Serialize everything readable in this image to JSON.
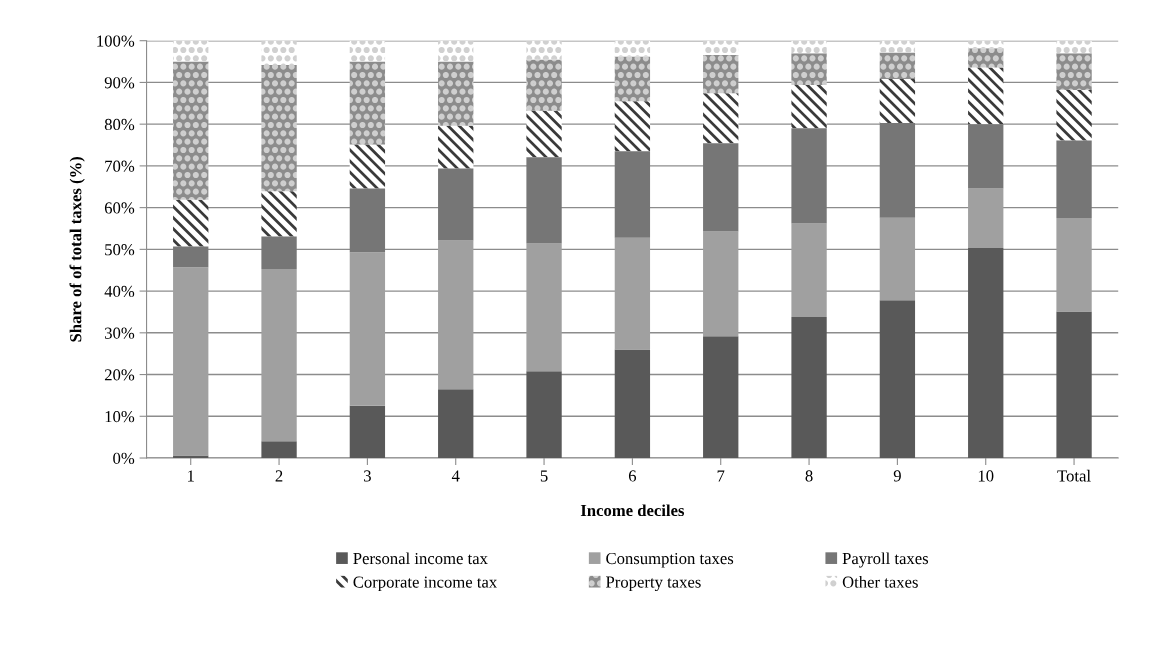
{
  "chart_data": {
    "type": "bar",
    "stacked": true,
    "xlabel": "Income deciles",
    "ylabel": "Share of of total taxes (%)",
    "categories": [
      "1",
      "2",
      "3",
      "4",
      "5",
      "6",
      "7",
      "8",
      "9",
      "10",
      "Total"
    ],
    "ylim": [
      0,
      100
    ],
    "yticks": [
      {
        "value": 0,
        "label": "0%"
      },
      {
        "value": 10,
        "label": "10%"
      },
      {
        "value": 20,
        "label": "20%"
      },
      {
        "value": 30,
        "label": "30%"
      },
      {
        "value": 40,
        "label": "40%"
      },
      {
        "value": 50,
        "label": "50%"
      },
      {
        "value": 60,
        "label": "60%"
      },
      {
        "value": 70,
        "label": "70%"
      },
      {
        "value": 80,
        "label": "80%"
      },
      {
        "value": 90,
        "label": "90%"
      },
      {
        "value": 100,
        "label": "100%"
      }
    ],
    "grid": "y",
    "legend": "bottom",
    "series": [
      {
        "name": "Personal income tax",
        "color": "#595959",
        "values": [
          0.6,
          4.0,
          12.5,
          16.5,
          20.8,
          26.0,
          29.2,
          33.8,
          37.8,
          50.3,
          35.1
        ]
      },
      {
        "name": "Consumption taxes",
        "color": "#a0a0a0",
        "values": [
          45.1,
          41.3,
          36.8,
          35.6,
          30.6,
          26.8,
          25.1,
          22.4,
          19.8,
          14.3,
          22.4
        ]
      },
      {
        "name": "Payroll taxes",
        "color": "#767676",
        "values": [
          5.0,
          7.8,
          15.3,
          17.3,
          20.7,
          20.7,
          21.1,
          22.8,
          22.7,
          15.4,
          18.6
        ]
      },
      {
        "name": "Corporate income tax",
        "color": "#3a3a3a",
        "values": [
          11.2,
          10.8,
          10.5,
          10.2,
          11.1,
          12.0,
          12.0,
          10.4,
          10.5,
          13.6,
          12.1
        ]
      },
      {
        "name": "Property taxes",
        "color": "#8c8c8c",
        "values": [
          33.1,
          30.3,
          19.9,
          15.4,
          12.3,
          10.7,
          9.2,
          7.6,
          6.4,
          4.6,
          8.8
        ]
      },
      {
        "name": "Other taxes",
        "color": "#d0d0d0",
        "values": [
          5.0,
          5.8,
          5.0,
          5.0,
          4.5,
          3.8,
          3.4,
          3.0,
          2.8,
          1.8,
          3.0
        ]
      }
    ]
  }
}
